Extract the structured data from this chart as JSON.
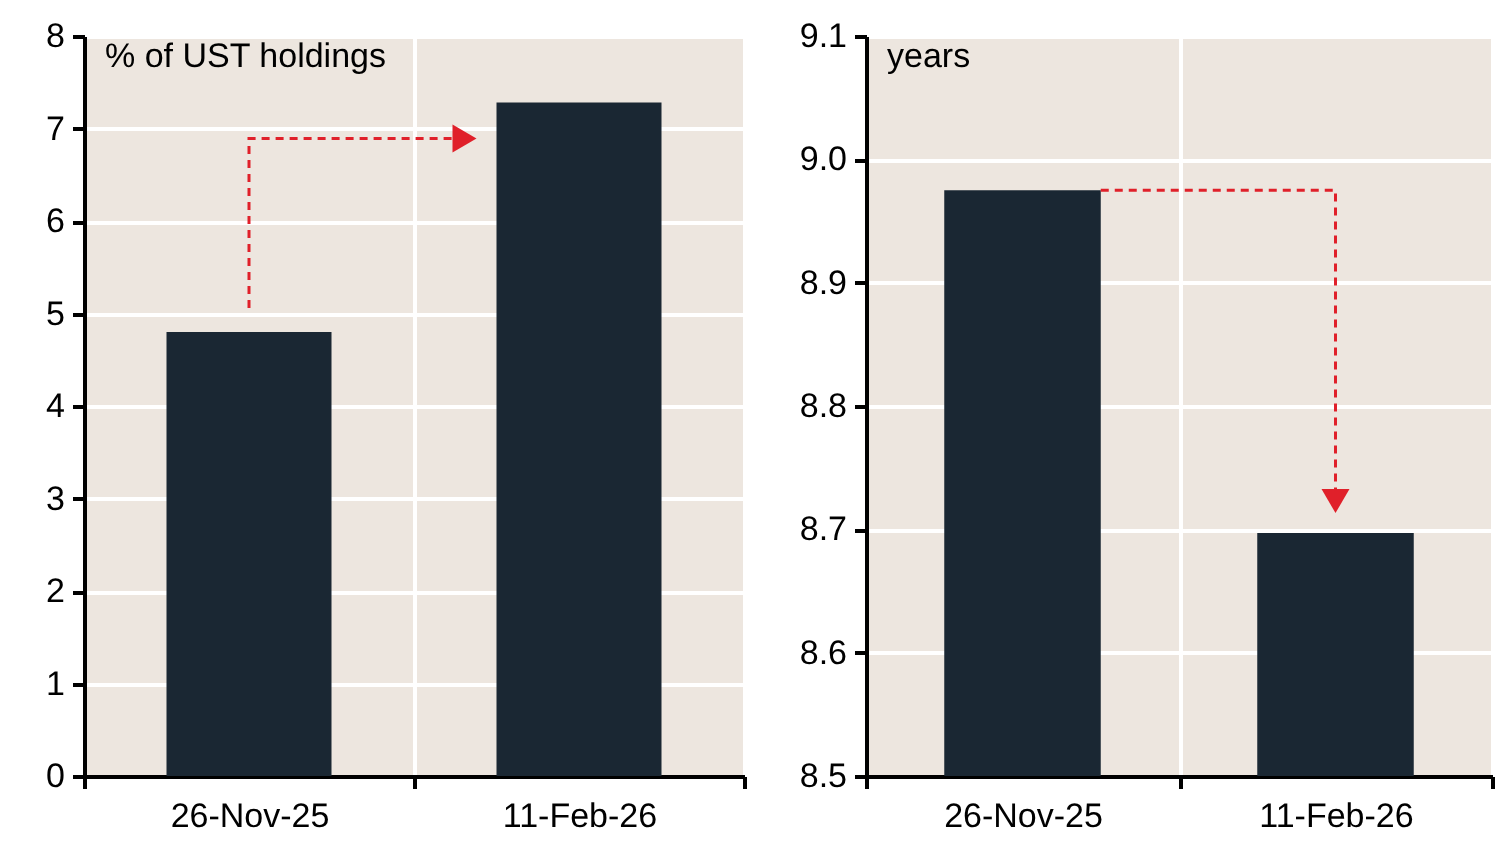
{
  "chart_data": [
    {
      "type": "bar",
      "ylabel": "% of UST holdings",
      "categories": [
        "26-Nov-25",
        "11-Feb-26"
      ],
      "values": [
        4.8,
        7.28
      ],
      "color": "#1a2733",
      "ylim": [
        0,
        8
      ],
      "yticks": [
        0,
        1,
        2,
        3,
        4,
        5,
        6,
        7,
        8
      ],
      "grid": true
    },
    {
      "type": "bar",
      "ylabel": "years",
      "categories": [
        "26-Nov-25",
        "11-Feb-26"
      ],
      "values": [
        8.975,
        8.697
      ],
      "color": "#1a2733",
      "ylim": [
        8.5,
        9.1
      ],
      "yticks": [
        8.5,
        8.6,
        8.7,
        8.8,
        8.9,
        {
          "value": 9,
          "label": "9.0"
        },
        9.1
      ],
      "grid": true
    }
  ]
}
